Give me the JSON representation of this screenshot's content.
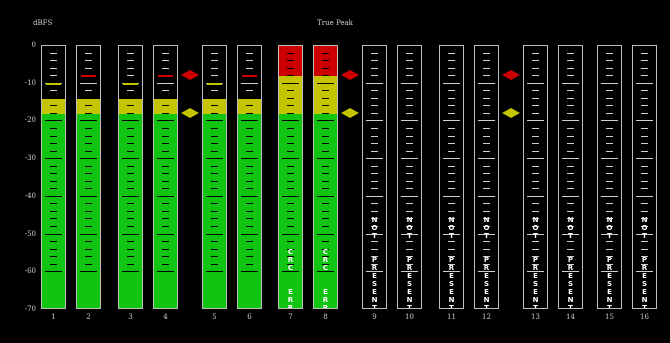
{
  "meter": {
    "title": "True Peak",
    "unit": "dBFS",
    "scale_labels": [
      "0",
      "-10",
      "-20",
      "-30",
      "-40",
      "-50",
      "-60",
      "-70"
    ],
    "scale_min_db": -70,
    "scale_max_db": 0,
    "yellow_threshold_db": -14,
    "red_threshold_db": -8,
    "green_top_db": -18,
    "colors": {
      "green": "#11c411",
      "yellow": "#c4c400",
      "red": "#cc0000",
      "outline": "#bdbdbd"
    },
    "channels": [
      {
        "label": "1",
        "status": "",
        "level_db": -18,
        "peak_db": -10
      },
      {
        "label": "2",
        "status": "",
        "level_db": -18,
        "peak_db": -8
      },
      {
        "label": "3",
        "status": "",
        "level_db": -18,
        "peak_db": -10
      },
      {
        "label": "4",
        "status": "",
        "level_db": -18,
        "peak_db": -8
      },
      {
        "label": "5",
        "status": "",
        "level_db": -18,
        "peak_db": -10
      },
      {
        "label": "6",
        "status": "",
        "level_db": -18,
        "peak_db": -8
      },
      {
        "label": "7",
        "status": "CRC ERR",
        "level_db": 0,
        "peak_db": 0
      },
      {
        "label": "8",
        "status": "CRC ERR",
        "level_db": 0,
        "peak_db": 0
      },
      {
        "label": "9",
        "status": "NOT PRESENT",
        "level_db": null,
        "peak_db": null
      },
      {
        "label": "10",
        "status": "NOT PRESENT",
        "level_db": null,
        "peak_db": null
      },
      {
        "label": "11",
        "status": "NOT PRESENT",
        "level_db": null,
        "peak_db": null
      },
      {
        "label": "12",
        "status": "NOT PRESENT",
        "level_db": null,
        "peak_db": null
      },
      {
        "label": "13",
        "status": "NOT PRESENT",
        "level_db": null,
        "peak_db": null
      },
      {
        "label": "14",
        "status": "NOT PRESENT",
        "level_db": null,
        "peak_db": null
      },
      {
        "label": "15",
        "status": "NOT PRESENT",
        "level_db": null,
        "peak_db": null
      },
      {
        "label": "16",
        "status": "NOT PRESENT",
        "level_db": null,
        "peak_db": null
      }
    ]
  }
}
